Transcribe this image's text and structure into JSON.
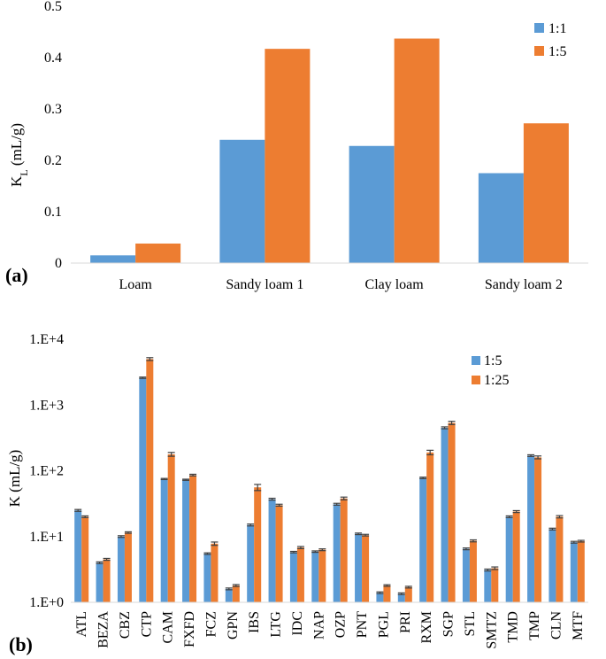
{
  "chart_data": [
    {
      "type": "bar",
      "panel_label": "(a)",
      "title": "",
      "xlabel": "",
      "ylabel": "K",
      "ylabel_sub": "L",
      "ylabel_unit": " (mL/g)",
      "ylim": [
        0,
        0.5
      ],
      "yticks": [
        "0",
        "0.1",
        "0.2",
        "0.3",
        "0.4",
        "0.5"
      ],
      "ytick_values": [
        0,
        0.1,
        0.2,
        0.3,
        0.4,
        0.5
      ],
      "grid": false,
      "legend_position": "top-right",
      "categories": [
        "Loam",
        "Sandy loam 1",
        "Clay loam",
        "Sandy loam 2"
      ],
      "series": [
        {
          "name": "1:1",
          "color": "#5b9bd5",
          "values": [
            0.015,
            0.24,
            0.228,
            0.175
          ]
        },
        {
          "name": "1:5",
          "color": "#ed7d31",
          "values": [
            0.038,
            0.417,
            0.437,
            0.272
          ]
        }
      ]
    },
    {
      "type": "bar",
      "panel_label": "(b)",
      "title": "",
      "xlabel": "",
      "ylabel": "K (mL/g)",
      "yscale": "log",
      "ylim": [
        1,
        10000
      ],
      "yticks": [
        "1.E+0",
        "1.E+1",
        "1.E+2",
        "1.E+3",
        "1.E+4"
      ],
      "ytick_values": [
        1,
        10,
        100,
        1000,
        10000
      ],
      "grid": false,
      "legend_position": "top-right",
      "error_bars": true,
      "categories": [
        "ATL",
        "BEZA",
        "CBZ",
        "CTP",
        "CAM",
        "FXFD",
        "FCZ",
        "GPN",
        "IBS",
        "LTG",
        "IDC",
        "NAP",
        "OZP",
        "PNT",
        "PGL",
        "PRI",
        "RXM",
        "SGP",
        "STL",
        "SMTZ",
        "TMD",
        "TMP",
        "CLN",
        "MTF"
      ],
      "series": [
        {
          "name": "1:5",
          "color": "#5b9bd5",
          "values": [
            25,
            4,
            10,
            2600,
            75,
            73,
            5.5,
            1.6,
            15,
            37,
            5.8,
            5.9,
            31,
            11,
            1.4,
            1.35,
            78,
            450,
            6.5,
            3.1,
            20,
            170,
            13,
            8.2
          ],
          "errors": [
            0.8,
            0.12,
            0.3,
            60,
            1.5,
            1.5,
            0.15,
            0.05,
            0.5,
            1.2,
            0.15,
            0.15,
            1,
            0.3,
            0.04,
            0.04,
            2,
            15,
            0.2,
            0.1,
            0.6,
            5,
            0.4,
            0.25
          ]
        },
        {
          "name": "1:25",
          "color": "#ed7d31",
          "values": [
            20,
            4.5,
            11.5,
            5000,
            178,
            86,
            7.8,
            1.8,
            56,
            30,
            6.8,
            6.3,
            38,
            10.5,
            1.8,
            1.7,
            190,
            535,
            8.6,
            3.3,
            24,
            160,
            20,
            8.5
          ],
          "errors": [
            0.6,
            0.15,
            0.3,
            250,
            12,
            2.5,
            0.45,
            0.06,
            6,
            1,
            0.25,
            0.2,
            1.8,
            0.3,
            0.05,
            0.05,
            15,
            30,
            0.3,
            0.15,
            0.8,
            8,
            0.8,
            0.25
          ]
        }
      ]
    }
  ]
}
